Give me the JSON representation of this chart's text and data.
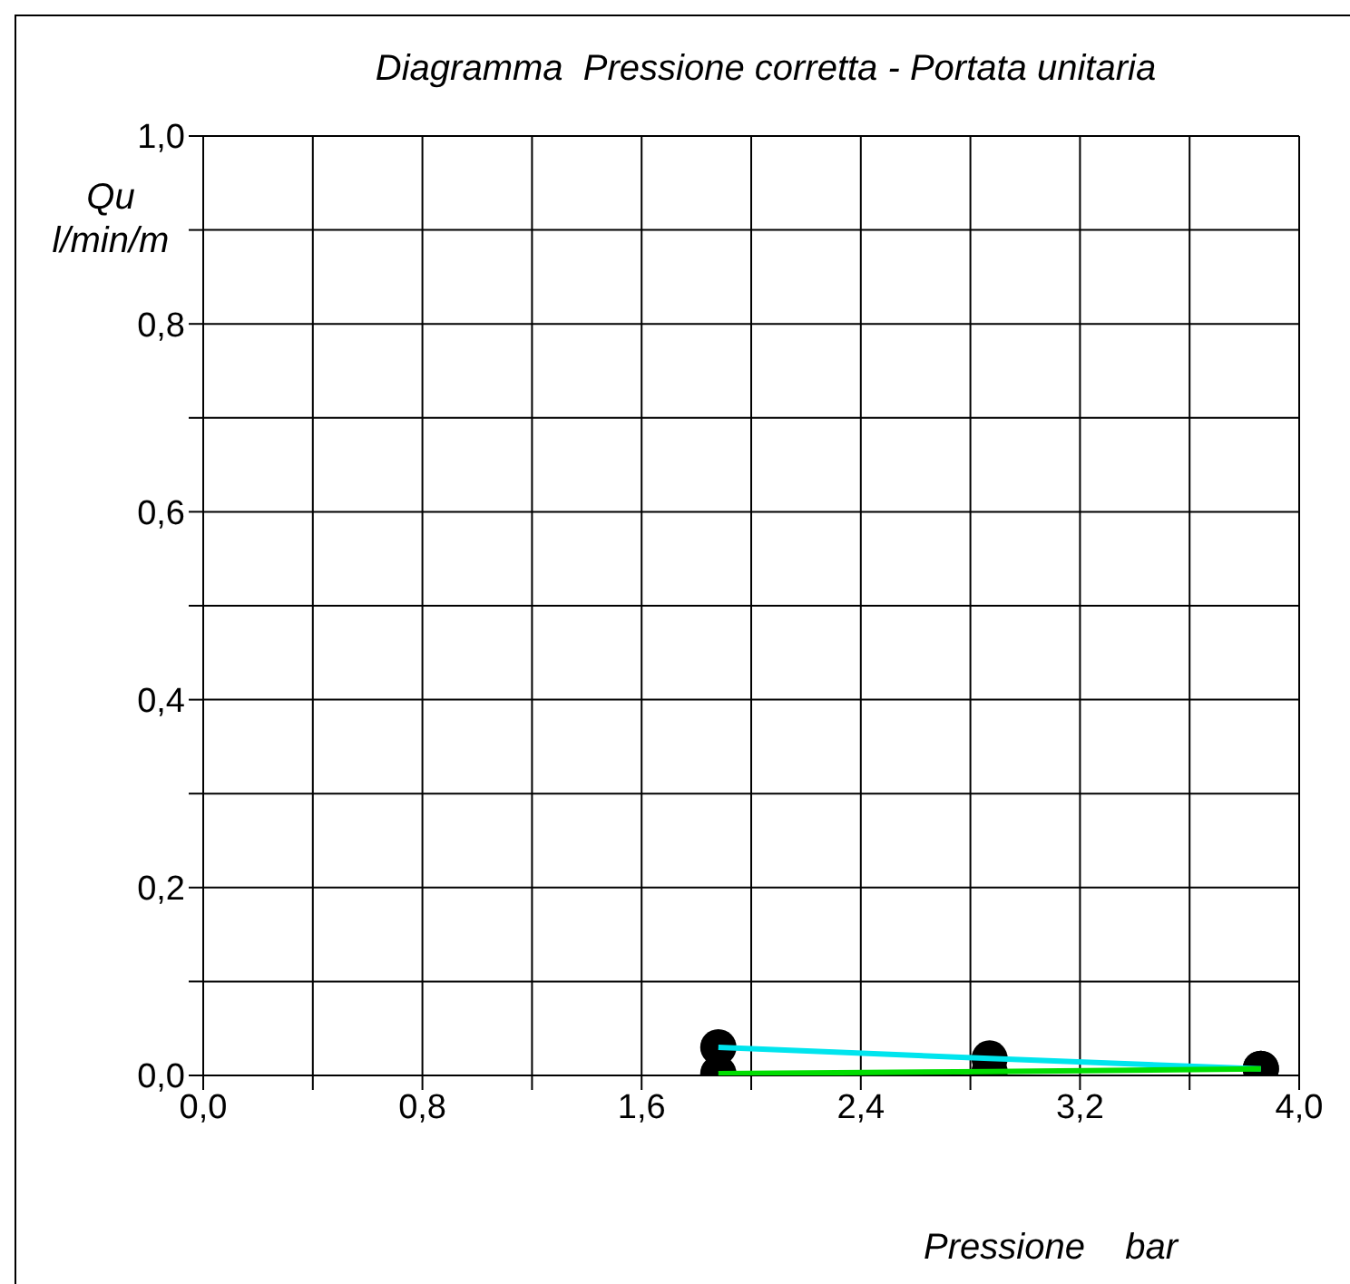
{
  "chart_data": {
    "type": "line",
    "title": "Diagramma  Pressione corretta - Portata unitaria",
    "xlabel": "Pressione    bar",
    "ylabel": "Qu\nl/min/m",
    "xlim": [
      0,
      4
    ],
    "xticks": [
      {
        "value": 0,
        "label": "0,0"
      },
      {
        "value": 0.4,
        "label": null
      },
      {
        "value": 0.8,
        "label": "0,8"
      },
      {
        "value": 1.2,
        "label": null
      },
      {
        "value": 1.6,
        "label": "1,6"
      },
      {
        "value": 2,
        "label": null
      },
      {
        "value": 2.4,
        "label": "2,4"
      },
      {
        "value": 2.8,
        "label": null
      },
      {
        "value": 3.2,
        "label": "3,2"
      },
      {
        "value": 3.6,
        "label": null
      },
      {
        "value": 4,
        "label": "4,0"
      }
    ],
    "ylim": [
      0,
      1
    ],
    "yticks": [
      {
        "value": 0,
        "label": "0,0"
      },
      {
        "value": 0.1,
        "label": null
      },
      {
        "value": 0.2,
        "label": "0,2"
      },
      {
        "value": 0.3,
        "label": null
      },
      {
        "value": 0.4,
        "label": "0,4"
      },
      {
        "value": 0.5,
        "label": null
      },
      {
        "value": 0.6,
        "label": "0,6"
      },
      {
        "value": 0.7,
        "label": null
      },
      {
        "value": 0.8,
        "label": "0,8"
      },
      {
        "value": 0.9,
        "label": null
      },
      {
        "value": 1,
        "label": "1,0"
      }
    ],
    "grid": true,
    "marker": "circle",
    "x": [
      1.88,
      2.87,
      3.86
    ],
    "series": [
      {
        "color": "#00e5ee",
        "values": [
          0.03,
          0.018,
          0.007
        ]
      },
      {
        "color": "#00dd00",
        "values": [
          0.002,
          0.004,
          0.007
        ]
      }
    ]
  }
}
